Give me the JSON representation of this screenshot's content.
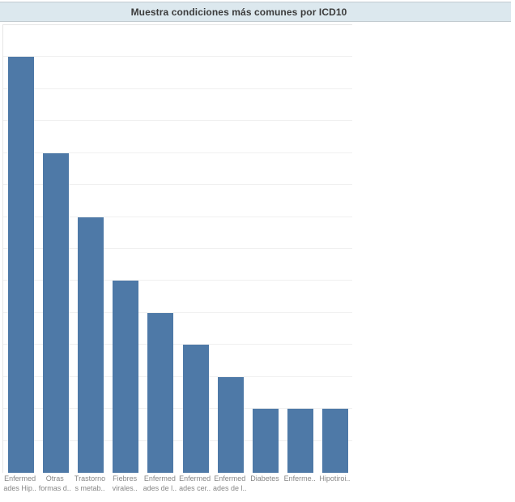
{
  "title_bar": {
    "title": "Muestra condiciones más comunes por ICD10"
  },
  "chart_data": {
    "type": "bar",
    "title": "Muestra condiciones más comunes por ICD10",
    "xlabel": "",
    "ylabel": "",
    "categories": [
      "Enfermedades Hip..",
      "Otras formas d..",
      "Trastornos metab..",
      "Fiebres virales..",
      "Enfermedades de l..",
      "Enfermedades cer..",
      "Enfermedades de l..",
      "Diabetes",
      "Enferme..",
      "Hipotiroi.."
    ],
    "category_label_lines": [
      [
        "Enfermed",
        "ades Hip.."
      ],
      [
        "Otras",
        "formas d.."
      ],
      [
        "Trastorno",
        "s metab.."
      ],
      [
        "Fiebres",
        "virales.."
      ],
      [
        "Enfermed",
        "ades de l.."
      ],
      [
        "Enfermed",
        "ades cer.."
      ],
      [
        "Enfermed",
        "ades de l.."
      ],
      [
        "Diabetes"
      ],
      [
        "Enferme.."
      ],
      [
        "Hipotiroi.."
      ]
    ],
    "values": [
      13,
      10,
      8,
      6,
      5,
      4,
      3,
      2,
      2,
      2
    ],
    "ylim": [
      0,
      14
    ],
    "grid": "horizontal gridlines every 1 unit, no numeric axis tick labels visible",
    "legend": "none"
  },
  "colors": {
    "bar": "#4e79a7",
    "title_bg": "#dce8ee",
    "title_border": "#c2cbd0",
    "title_text": "#3b3b3b",
    "gridline": "#f0f0f0",
    "pane_border": "#e6e6e6",
    "label_text": "#868686"
  }
}
